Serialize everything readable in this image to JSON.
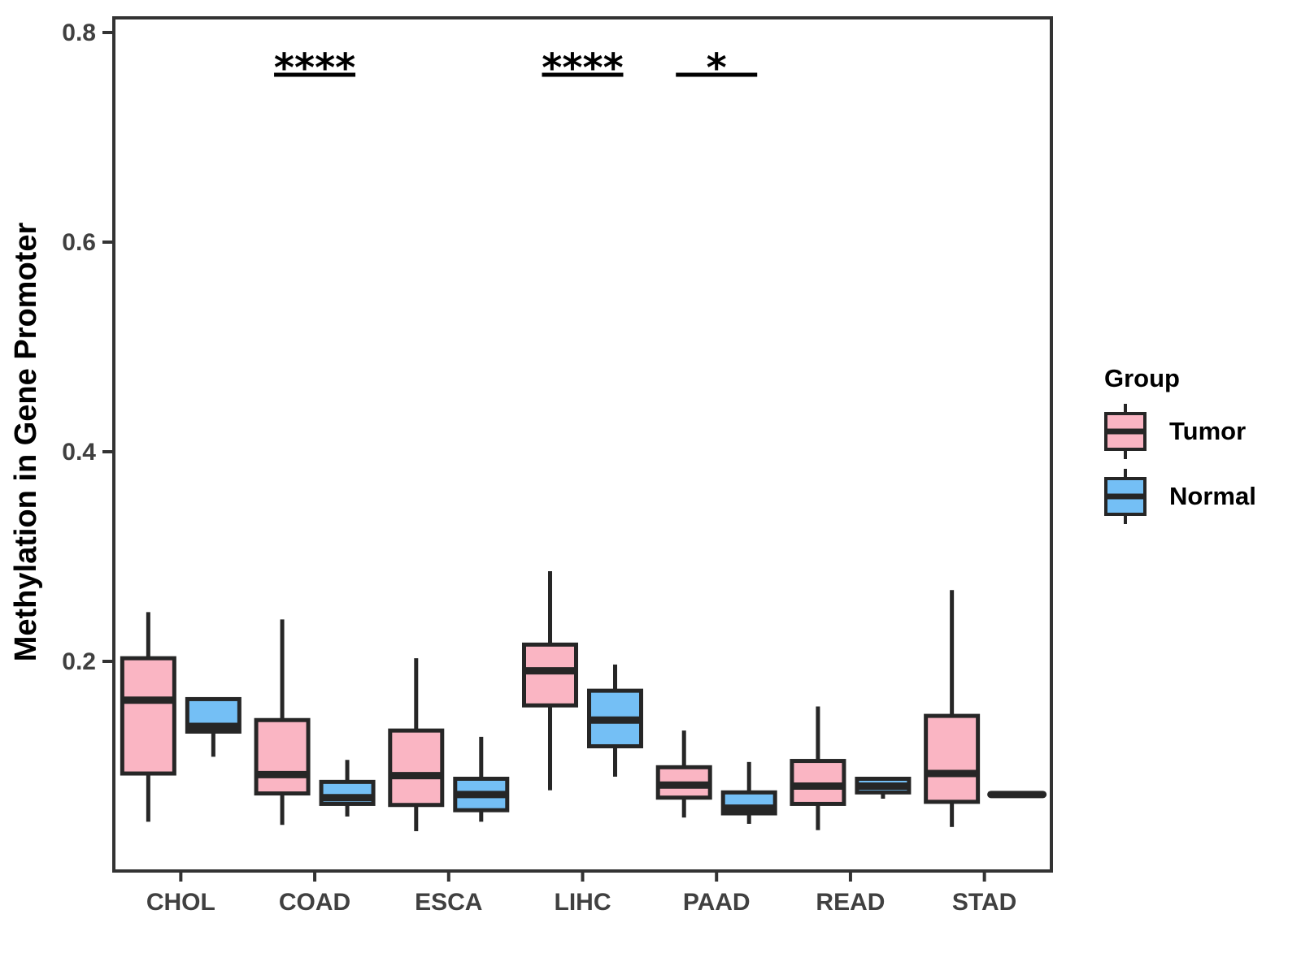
{
  "chart_data": {
    "type": "boxplot",
    "title": "",
    "xlabel": "",
    "ylabel": "Methylation in Gene Promoter",
    "ylim": [
      0,
      0.814
    ],
    "yticks": [
      0.2,
      0.4,
      0.6,
      0.8
    ],
    "grid": "off",
    "legend_position": "right",
    "legend_title": "Group",
    "categories": [
      "CHOL",
      "COAD",
      "ESCA",
      "LIHC",
      "PAAD",
      "READ",
      "STAD"
    ],
    "groups": [
      {
        "name": "Tumor",
        "color": "#FAB5C3"
      },
      {
        "name": "Normal",
        "color": "#74BFF5"
      }
    ],
    "series": [
      {
        "name": "Tumor",
        "boxes": [
          {
            "category": "CHOL",
            "min": 0.047,
            "q1": 0.093,
            "median": 0.163,
            "q3": 0.203,
            "max": 0.247
          },
          {
            "category": "COAD",
            "min": 0.044,
            "q1": 0.074,
            "median": 0.092,
            "q3": 0.144,
            "max": 0.24
          },
          {
            "category": "ESCA",
            "min": 0.038,
            "q1": 0.063,
            "median": 0.091,
            "q3": 0.134,
            "max": 0.203
          },
          {
            "category": "LIHC",
            "min": 0.077,
            "q1": 0.158,
            "median": 0.191,
            "q3": 0.216,
            "max": 0.286
          },
          {
            "category": "PAAD",
            "min": 0.051,
            "q1": 0.07,
            "median": 0.082,
            "q3": 0.099,
            "max": 0.134
          },
          {
            "category": "READ",
            "min": 0.039,
            "q1": 0.064,
            "median": 0.081,
            "q3": 0.105,
            "max": 0.157
          },
          {
            "category": "STAD",
            "min": 0.042,
            "q1": 0.066,
            "median": 0.093,
            "q3": 0.148,
            "max": 0.268
          }
        ]
      },
      {
        "name": "Normal",
        "boxes": [
          {
            "category": "CHOL",
            "min": 0.109,
            "q1": 0.133,
            "median": 0.138,
            "q3": 0.164,
            "max": 0.164
          },
          {
            "category": "COAD",
            "min": 0.052,
            "q1": 0.064,
            "median": 0.07,
            "q3": 0.085,
            "max": 0.106
          },
          {
            "category": "ESCA",
            "min": 0.047,
            "q1": 0.058,
            "median": 0.073,
            "q3": 0.088,
            "max": 0.128
          },
          {
            "category": "LIHC",
            "min": 0.09,
            "q1": 0.119,
            "median": 0.144,
            "q3": 0.172,
            "max": 0.197
          },
          {
            "category": "PAAD",
            "min": 0.045,
            "q1": 0.055,
            "median": 0.06,
            "q3": 0.075,
            "max": 0.104
          },
          {
            "category": "READ",
            "min": 0.069,
            "q1": 0.075,
            "median": 0.081,
            "q3": 0.088,
            "max": 0.088
          },
          {
            "category": "STAD",
            "min": 0.073,
            "q1": 0.073,
            "median": 0.073,
            "q3": 0.073,
            "max": 0.073
          }
        ]
      }
    ],
    "significance": [
      {
        "category": "COAD",
        "label": "****"
      },
      {
        "category": "LIHC",
        "label": "****"
      },
      {
        "category": "PAAD",
        "label": "*"
      }
    ],
    "colors": {
      "box_stroke": "#262626",
      "axis_line": "#333333",
      "axis_text": "#404040",
      "significance": "#000000"
    }
  }
}
